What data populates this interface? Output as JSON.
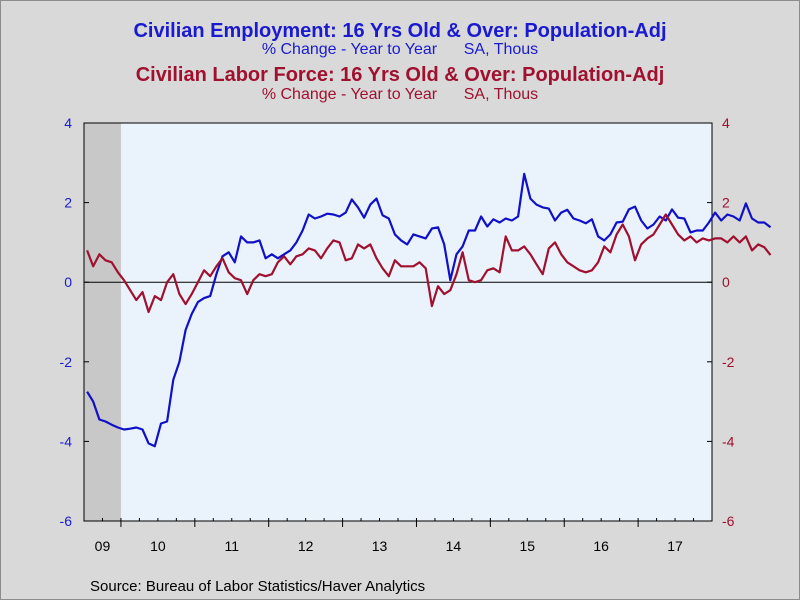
{
  "titles": {
    "series1_title": "Civilian Employment: 16 Yrs Old & Over: Population-Adj",
    "series1_subtitle": "% Change - Year to Year      SA, Thous",
    "series2_title": "Civilian Labor Force: 16 Yrs Old & Over: Population-Adj",
    "series2_subtitle": "% Change - Year to Year      SA, Thous"
  },
  "source": "Source:  Bureau of Labor Statistics/Haver Analytics",
  "colors": {
    "employment": "#1010c8",
    "labor_force": "#a0102f",
    "plot_bg": "#eaf3fb",
    "recession": "#c8c8c8",
    "left_axis_labels": "#1a1ad0",
    "right_axis_labels": "#a0102f"
  },
  "chart_data": {
    "type": "line",
    "title": "",
    "xlabel": "",
    "ylabel": "",
    "x_start": "2009-07",
    "x_end": "2017-12",
    "x_tick_labels": [
      "09",
      "10",
      "11",
      "12",
      "13",
      "14",
      "15",
      "16",
      "17"
    ],
    "ylim": [
      -6,
      4
    ],
    "y_ticks": [
      -6,
      -4,
      -2,
      0,
      2,
      4
    ],
    "y_ticks_right": [
      -6,
      -4,
      -2,
      0,
      2,
      4
    ],
    "grid": false,
    "zero_line": true,
    "recession_shading": {
      "from": "2009-07",
      "to": "2009-12"
    },
    "series": [
      {
        "name": "Civilian Employment: 16 Yrs Old & Over: Population-Adj",
        "color": "employment",
        "values": [
          -2.75,
          -3.0,
          -3.45,
          -3.5,
          -3.58,
          -3.65,
          -3.7,
          -3.68,
          -3.65,
          -3.7,
          -4.05,
          -4.12,
          -3.55,
          -3.5,
          -2.45,
          -2.0,
          -1.2,
          -0.8,
          -0.5,
          -0.4,
          -0.35,
          0.2,
          0.65,
          0.75,
          0.5,
          1.15,
          1.0,
          1.0,
          1.05,
          0.6,
          0.7,
          0.6,
          0.7,
          0.8,
          1.0,
          1.3,
          1.7,
          1.6,
          1.65,
          1.72,
          1.7,
          1.65,
          1.75,
          2.08,
          1.88,
          1.62,
          1.95,
          2.1,
          1.68,
          1.6,
          1.2,
          1.05,
          0.95,
          1.2,
          1.15,
          1.1,
          1.35,
          1.38,
          0.95,
          0.05,
          0.7,
          0.9,
          1.3,
          1.3,
          1.65,
          1.4,
          1.58,
          1.5,
          1.6,
          1.55,
          1.65,
          2.72,
          2.1,
          1.95,
          1.88,
          1.85,
          1.55,
          1.75,
          1.82,
          1.6,
          1.55,
          1.48,
          1.58,
          1.15,
          1.05,
          1.2,
          1.5,
          1.52,
          1.83,
          1.9,
          1.55,
          1.35,
          1.45,
          1.65,
          1.55,
          1.83,
          1.62,
          1.6,
          1.25,
          1.3,
          1.3,
          1.5,
          1.75,
          1.55,
          1.7,
          1.65,
          1.55,
          1.98,
          1.6,
          1.5,
          1.5,
          1.38
        ]
      },
      {
        "name": "Civilian Labor Force: 16 Yrs Old & Over: Population-Adj",
        "color": "labor_force",
        "values": [
          0.8,
          0.4,
          0.7,
          0.55,
          0.5,
          0.25,
          0.05,
          -0.2,
          -0.45,
          -0.25,
          -0.75,
          -0.35,
          -0.45,
          0.0,
          0.2,
          -0.3,
          -0.55,
          -0.3,
          0.0,
          0.3,
          0.15,
          0.4,
          0.6,
          0.25,
          0.1,
          0.05,
          -0.3,
          0.05,
          0.2,
          0.15,
          0.2,
          0.5,
          0.65,
          0.45,
          0.65,
          0.7,
          0.85,
          0.8,
          0.6,
          0.85,
          1.05,
          1.0,
          0.55,
          0.6,
          0.95,
          0.85,
          0.95,
          0.6,
          0.35,
          0.15,
          0.55,
          0.4,
          0.4,
          0.4,
          0.5,
          0.35,
          -0.6,
          -0.1,
          -0.3,
          -0.2,
          0.2,
          0.75,
          0.05,
          0.0,
          0.05,
          0.3,
          0.35,
          0.25,
          1.15,
          0.8,
          0.8,
          0.9,
          0.7,
          0.45,
          0.2,
          0.85,
          1.0,
          0.7,
          0.5,
          0.4,
          0.3,
          0.25,
          0.3,
          0.5,
          0.9,
          0.75,
          1.2,
          1.45,
          1.15,
          0.55,
          0.95,
          1.1,
          1.2,
          1.45,
          1.7,
          1.45,
          1.2,
          1.05,
          1.15,
          1.0,
          1.1,
          1.05,
          1.1,
          1.1,
          1.0,
          1.15,
          1.0,
          1.15,
          0.8,
          0.95,
          0.88,
          0.68
        ]
      }
    ]
  }
}
